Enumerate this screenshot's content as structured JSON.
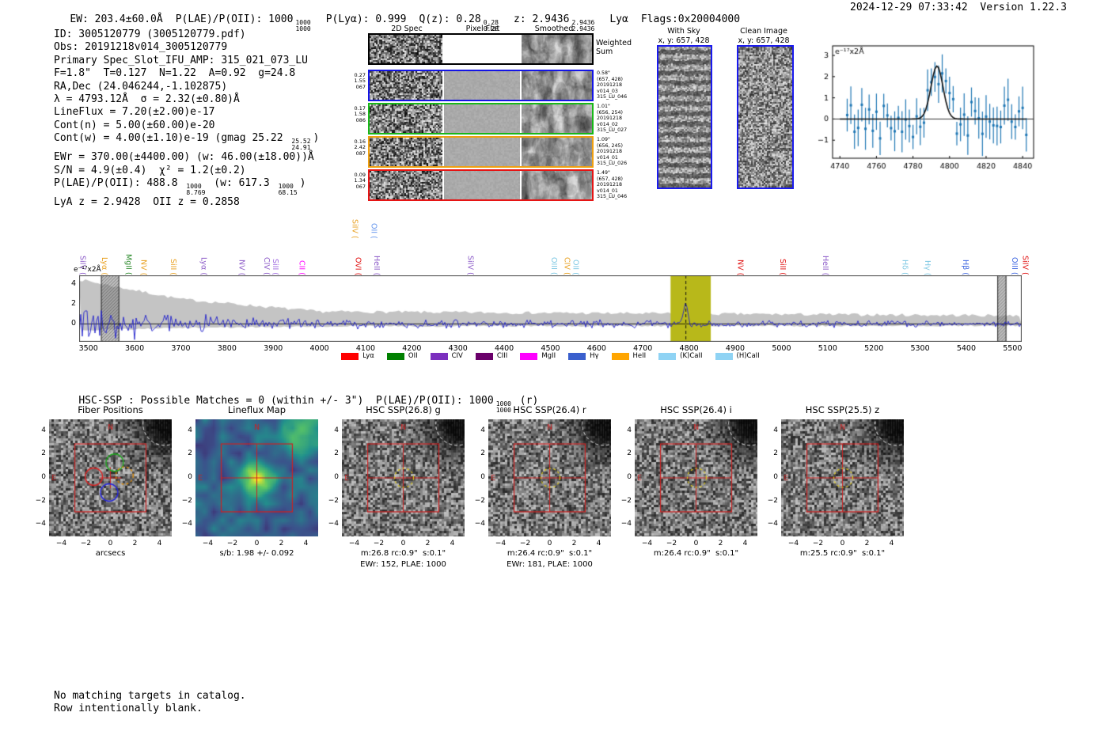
{
  "header": {
    "ew": "EW: 203.4±60.0Å",
    "plae": "P(LAE)/P(OII): 1000",
    "plae_hi": "1000",
    "plae_lo": "1000",
    "plya": "P(Lyα): 0.999",
    "qz": "Q(z): 0.28",
    "qz_hi": "0.28",
    "qz_lo": "0.28",
    "z": "z: 2.9436",
    "z_hi": "2.9436",
    "z_lo": "2.9436",
    "line_id": "Lyα",
    "flags": "Flags:0x20004000",
    "datetime": "2024-12-29 07:33:42",
    "version": "Version 1.22.3"
  },
  "info": {
    "lines": [
      {
        "pre": "ID: 3005120779 (3005120779.pdf)"
      },
      {
        "pre": "Obs: 20191218v014_3005120779"
      },
      {
        "pre": "Primary Spec_Slot_IFU_AMP: 315_021_073_LU"
      },
      {
        "pre": "F=1.8\"  T=0.127  N=1.22  A=0.92  g=24.8"
      },
      {
        "pre": "RA,Dec (24.046244,-1.102875)"
      },
      {
        "pre": "λ = 4793.12Å  σ = 2.32(±0.80)Å"
      },
      {
        "pre": "LineFlux = 7.20(±2.00)e-17"
      },
      {
        "pre": "Cont(n) = 5.00(±60.00)e-20"
      },
      {
        "pre": "Cont(w) = 4.00(±1.10)e-19 (gmag 25.22 ",
        "hi": "25.52",
        "lo": "24.91",
        "post": ")"
      },
      {
        "pre": "EWr = 370.00(±4400.00) (w: 46.00(±18.00))Å"
      },
      {
        "pre": "S/N = 4.9(±0.4)  χ² = 1.2(±0.2)"
      },
      {
        "pre": "P(LAE)/P(OII): 488.8 ",
        "hi": "1000",
        "lo": "8.769",
        "mid": " (w: 617.3 ",
        "hi2": "1000",
        "lo2": "68.15",
        "post": ")"
      },
      {
        "pre": "LyA z = 2.9428  OII z = 0.2858"
      }
    ]
  },
  "cutouts2d": {
    "col_titles": [
      "2D Spec",
      "Pixel Flat",
      "Smoothed"
    ],
    "weighted_sum": [
      "Weighted",
      "Sum"
    ],
    "rows": [
      {
        "color": "#1414e6",
        "left": [
          "0.27",
          "1.55",
          "067"
        ],
        "right": [
          "0.58\"",
          "(657, 428)",
          "20191218",
          "v014_03",
          "315_LU_046"
        ]
      },
      {
        "color": "#18b818",
        "left": [
          "0.17",
          "1.58",
          "086"
        ],
        "right": [
          "1.01\"",
          "(656, 254)",
          "20191218",
          "v014_02",
          "315_LU_027"
        ]
      },
      {
        "color": "#f0a010",
        "left": [
          "0.16",
          "2.42",
          "087"
        ],
        "right": [
          "1.09\"",
          "(656, 245)",
          "20191218",
          "v014_01",
          "315_LU_026"
        ]
      },
      {
        "color": "#e61414",
        "left": [
          "0.09",
          "1.34",
          "067"
        ],
        "right": [
          "1.49\"",
          "(657, 428)",
          "20191218",
          "v014_01",
          "315_LU_046"
        ]
      }
    ]
  },
  "sky_panels": [
    {
      "title": "With Sky",
      "sub": "x, y: 657, 428"
    },
    {
      "title": "Clean Image",
      "sub": "x, y: 657, 428"
    }
  ],
  "chart_data": [
    {
      "id": "line_fit_inset",
      "type": "scatter",
      "title": "",
      "ylabel": "e⁻¹⁷x2Å",
      "xlim": [
        4736,
        4846
      ],
      "ylim": [
        -1.85,
        3.45
      ],
      "xticks": [
        4740,
        4760,
        4780,
        4800,
        4820,
        4840
      ],
      "yticks": [
        -1,
        0,
        1,
        2,
        3
      ],
      "fit": {
        "center": 4793.12,
        "sigma": 3.3,
        "peak": 2.5,
        "baseline": 0
      },
      "point_color": "#1f77b4",
      "fit_color": "#111111",
      "n_points": 50,
      "point_step": 2,
      "noise_amp": 1.15,
      "err_min": 0.55,
      "err_max": 1.05,
      "seed": 42
    },
    {
      "id": "full_spectrum",
      "type": "line",
      "title": "",
      "ylabel": "e⁻¹⁷x2Å",
      "xlim": [
        3480,
        5520
      ],
      "ylim": [
        -1.8,
        4.9
      ],
      "xticks": [
        3500,
        3600,
        3700,
        3800,
        3900,
        4000,
        4100,
        4200,
        4300,
        4400,
        4500,
        4600,
        4700,
        4800,
        4900,
        5000,
        5100,
        5200,
        5300,
        5400,
        5500
      ],
      "yticks": [
        0,
        2,
        4
      ],
      "line_color": "#2020cc",
      "noise_band_color": "#c4c4c4",
      "highlight_band": {
        "x0": 4760,
        "x1": 4847,
        "color": "#b8b81a",
        "center": 4793.12
      },
      "hatch_bands": [
        [
          3528,
          3566
        ],
        [
          5468,
          5486
        ]
      ],
      "emission": {
        "center": 4793.12,
        "peak": 2.35,
        "sigma": 4
      },
      "seed": 7,
      "line_labels": [
        {
          "wl": 3488,
          "label": "SiIV",
          "color": "#8c5bc8"
        },
        {
          "wl": 3535,
          "label": "Lyα",
          "color": "#e8a020"
        },
        {
          "wl": 3587,
          "label": "MgII",
          "color": "#2e8b2e"
        },
        {
          "wl": 3620,
          "label": "NV",
          "color": "#e8a020"
        },
        {
          "wl": 3684,
          "label": "SiII",
          "color": "#e8a020"
        },
        {
          "wl": 3750,
          "label": "Lyα",
          "color": "#8c5bc8"
        },
        {
          "wl": 3832,
          "label": "NV",
          "color": "#8c5bc8"
        },
        {
          "wl": 3886,
          "label": "CIV",
          "color": "#8c5bc8"
        },
        {
          "wl": 3905,
          "label": "SiII",
          "color": "#a06be0"
        },
        {
          "wl": 3962,
          "label": "CII",
          "color": "#ff00ff"
        },
        {
          "wl": 4077,
          "label": "SiIV",
          "color": "#e8a020",
          "tall": true
        },
        {
          "wl": 4084,
          "label": "OVI",
          "color": "#e01010"
        },
        {
          "wl": 4118,
          "label": "OII",
          "color": "#6495ed",
          "tall": true
        },
        {
          "wl": 4124,
          "label": "HeII",
          "color": "#8c5bc8"
        },
        {
          "wl": 4327,
          "label": "SiIV",
          "color": "#8c5bc8"
        },
        {
          "wl": 4508,
          "label": "OIII",
          "color": "#7ec8e3"
        },
        {
          "wl": 4536,
          "label": "CIV",
          "color": "#e8a020"
        },
        {
          "wl": 4555,
          "label": "OII",
          "color": "#7ec8e3"
        },
        {
          "wl": 4911,
          "label": "NV",
          "color": "#e01010"
        },
        {
          "wl": 5003,
          "label": "SiII",
          "color": "#e01010"
        },
        {
          "wl": 5095,
          "label": "HeII",
          "color": "#8c5bc8"
        },
        {
          "wl": 5267,
          "label": "Hδ",
          "color": "#7ec8e3"
        },
        {
          "wl": 5316,
          "label": "Hγ",
          "color": "#7ec8e3"
        },
        {
          "wl": 5398,
          "label": "Hβ",
          "color": "#4169e1"
        },
        {
          "wl": 5505,
          "label": "OIII",
          "color": "#4169e1"
        },
        {
          "wl": 5528,
          "label": "SiIV",
          "color": "#e01010"
        }
      ],
      "legend": [
        {
          "label": "Lyα",
          "color": "#ff0000"
        },
        {
          "label": "OII",
          "color": "#008000"
        },
        {
          "label": "CIV",
          "color": "#7b2fbe"
        },
        {
          "label": "CIII",
          "color": "#6a006a"
        },
        {
          "label": "MgII",
          "color": "#ff00ff"
        },
        {
          "label": "Hγ",
          "color": "#3a5fcd"
        },
        {
          "label": "HeII",
          "color": "#ffa500"
        },
        {
          "label": "(K)CaII",
          "color": "#8fd3f4"
        },
        {
          "label": "(H)CaII",
          "color": "#8fd3f4"
        }
      ]
    }
  ],
  "hsc": {
    "pre": "HSC-SSP : Possible Matches = 0 (within +/- 3\")  P(LAE)/P(OII): 1000",
    "hi": "1000",
    "lo": "1000",
    "post": " (r)"
  },
  "panels": {
    "axis": {
      "xticks": [
        -4,
        -2,
        0,
        2,
        4
      ],
      "yticks": [
        4,
        2,
        0,
        -2,
        -4
      ]
    },
    "compass": {
      "north": "N",
      "east": "E",
      "color": "#cc2222"
    },
    "fiber_colors": [
      "#dd2222",
      "#22aa22",
      "#2222dd",
      "#dd8800"
    ],
    "items": [
      {
        "title": "Fiber Positions",
        "xlabel": "arcsecs",
        "kind": "fiber"
      },
      {
        "title": "Lineflux Map",
        "xlabel": "s/b: 1.98 +/- 0.092",
        "kind": "lineflux"
      },
      {
        "title": "HSC SSP(26.8) g",
        "xlabel": "m:26.8 rc:0.9\"  s:0.1\"",
        "xlabel2": "EWr: 152, PLAE: 1000",
        "kind": "hsc"
      },
      {
        "title": "HSC SSP(26.4) r",
        "xlabel": "m:26.4 rc:0.9\"  s:0.1\"",
        "xlabel2": "EWr: 181, PLAE: 1000",
        "kind": "hsc"
      },
      {
        "title": "HSC SSP(26.4) i",
        "xlabel": "m:26.4 rc:0.9\"  s:0.1\"",
        "kind": "hsc"
      },
      {
        "title": "HSC SSP(25.5) z",
        "xlabel": "m:25.5 rc:0.9\"  s:0.1\"",
        "kind": "hsc"
      }
    ]
  },
  "footer": {
    "lines": [
      "No matching targets in catalog.",
      "Row intentionally blank."
    ]
  }
}
